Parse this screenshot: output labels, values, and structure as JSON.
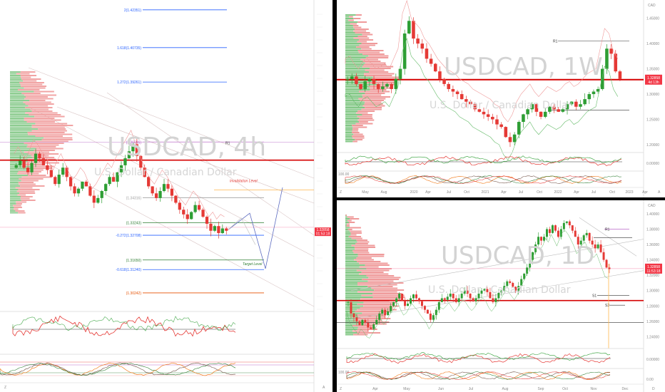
{
  "chart_data": [
    {
      "type": "candlestick",
      "symbol": "USDCAD",
      "timeframe": "4h",
      "title": "USDCAD, 4h",
      "subtitle": "U.S. Dollar / Canadian Dollar",
      "annotations": {
        "invalidation": "Invalidation Level",
        "target": "Target Level",
        "r1": "R1"
      },
      "fib_levels": [
        {
          "label": "2(1.42351)",
          "value": 1.42351,
          "color": "#2962ff"
        },
        {
          "label": "1.618(1.40735)",
          "value": 1.40735,
          "color": "#2962ff"
        },
        {
          "label": "1.272(1.39261)",
          "value": 1.39261,
          "color": "#2962ff"
        },
        {
          "label": "(1.36696)",
          "value": 1.36696,
          "color": "#ab47bc"
        },
        {
          "label": "(1.34316)",
          "value": 1.34316,
          "color": "#9e9e9e"
        },
        {
          "label": "(1.33243)",
          "value": 1.33243,
          "color": "#2e7d32"
        },
        {
          "label": "-0.272(1.32708)",
          "value": 1.32708,
          "color": "#2962ff"
        },
        {
          "label": "(1.31650)",
          "value": 1.3165,
          "color": "#2e7d32"
        },
        {
          "label": "-0.618(1.31240)",
          "value": 1.3124,
          "color": "#2962ff"
        },
        {
          "label": "(1.30242)",
          "value": 1.30242,
          "color": "#e65100"
        }
      ],
      "last_price": "1.32858",
      "countdown": "01:53:18",
      "candles_close": [
        1.357,
        1.359,
        1.356,
        1.354,
        1.358,
        1.362,
        1.36,
        1.357,
        1.355,
        1.352,
        1.349,
        1.353,
        1.356,
        1.352,
        1.348,
        1.345,
        1.347,
        1.35,
        1.348,
        1.344,
        1.341,
        1.343,
        1.346,
        1.349,
        1.352,
        1.35,
        1.354,
        1.357,
        1.36,
        1.363,
        1.366,
        1.361,
        1.356,
        1.352,
        1.348,
        1.345,
        1.343,
        1.346,
        1.349,
        1.347,
        1.344,
        1.341,
        1.338,
        1.336,
        1.334,
        1.337,
        1.34,
        1.338,
        1.335,
        1.332,
        1.329,
        1.331,
        1.328,
        1.33,
        1.329
      ]
    },
    {
      "type": "candlestick",
      "symbol": "USDCAD",
      "timeframe": "1W",
      "title": "USDCAD, 1W",
      "subtitle": "U.S. Dollar / Canadian Dollar",
      "annotations": {
        "r1": "R1"
      },
      "currency": "CAD",
      "y_ticks": [
        "1.45000",
        "1.40000",
        "1.35000",
        "1.30000",
        "1.25000",
        "1.20000"
      ],
      "x_ticks": [
        "May",
        "Aug",
        "2020",
        "Apr",
        "Jul",
        "Oct",
        "2021",
        "Apr",
        "Jul",
        "Oct",
        "2022",
        "Apr",
        "Jul",
        "Oct",
        "2023",
        "Apr"
      ],
      "osc_ticks": [
        "0.00000",
        "100.00"
      ],
      "last_price": "1.32858",
      "countdown": "4d 13h"
    },
    {
      "type": "candlestick",
      "symbol": "USDCAD",
      "timeframe": "1D",
      "title": "USDCAD, 1D",
      "subtitle": "U.S. Dollar / Canadian Dollar",
      "annotations": {
        "r1": "R1",
        "s1": "S1",
        "s2": "S2"
      },
      "currency": "CAD",
      "y_ticks": [
        "1.40000",
        "1.38000",
        "1.36000",
        "1.34000",
        "1.32000",
        "1.30000",
        "1.28000",
        "1.26000",
        "1.24000"
      ],
      "x_ticks": [
        "Apr",
        "May",
        "Jun",
        "Jul",
        "Aug",
        "Sep",
        "Oct",
        "Nov",
        "Dec"
      ],
      "osc_ticks": [
        "0.00000",
        "100.00",
        "0.00"
      ],
      "last_price": "1.32858",
      "countdown": "11:53:18"
    }
  ],
  "misc": {
    "axis_markers": [
      "Z",
      "A"
    ],
    "ticker_symbol_small": "D"
  },
  "colors": {
    "up": "#26a69a",
    "up_green": "#2e9e34",
    "down": "#e53935",
    "resistance": "#d50000",
    "invalidation": "#e53935",
    "target": "#2e7d32",
    "fib_blue": "#2962ff",
    "profile_red": "#ef9a9a",
    "profile_green": "#81c784",
    "price_tag": "#f23645"
  }
}
